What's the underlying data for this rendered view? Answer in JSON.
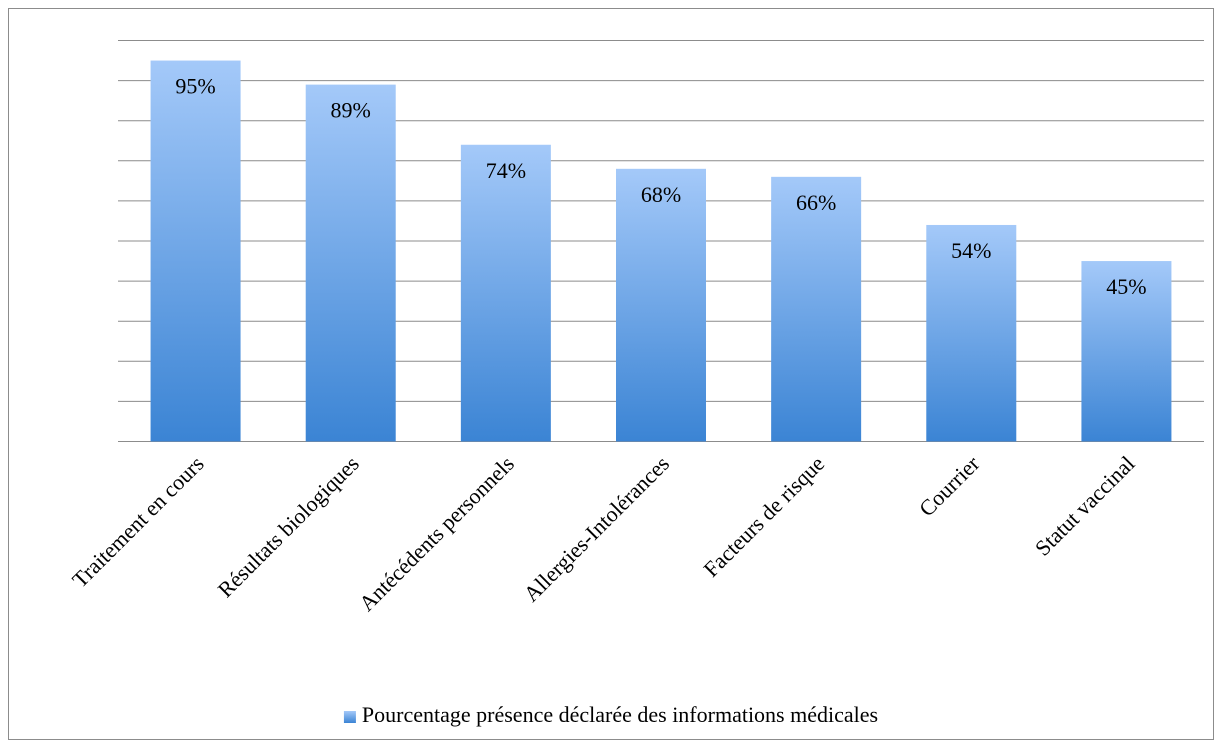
{
  "chart_data": {
    "type": "bar",
    "categories": [
      "Traitement en cours",
      "Résultats biologiques",
      "Antécédents personnels",
      "Allergies-Intolérances",
      "Facteurs de risque",
      "Courrier",
      "Statut vaccinal"
    ],
    "series": [
      {
        "name": "Pourcentage présence déclarée des informations médicales",
        "color": "#3b84d4",
        "values": [
          95,
          89,
          74,
          68,
          66,
          54,
          45
        ],
        "value_labels": [
          "95%",
          "89%",
          "74%",
          "68%",
          "66%",
          "54%",
          "45%"
        ]
      }
    ],
    "ylim": [
      0,
      100
    ],
    "yticks": [
      0,
      10,
      20,
      30,
      40,
      50,
      60,
      70,
      80,
      90,
      100
    ],
    "grid": true,
    "legend": "bottom"
  }
}
